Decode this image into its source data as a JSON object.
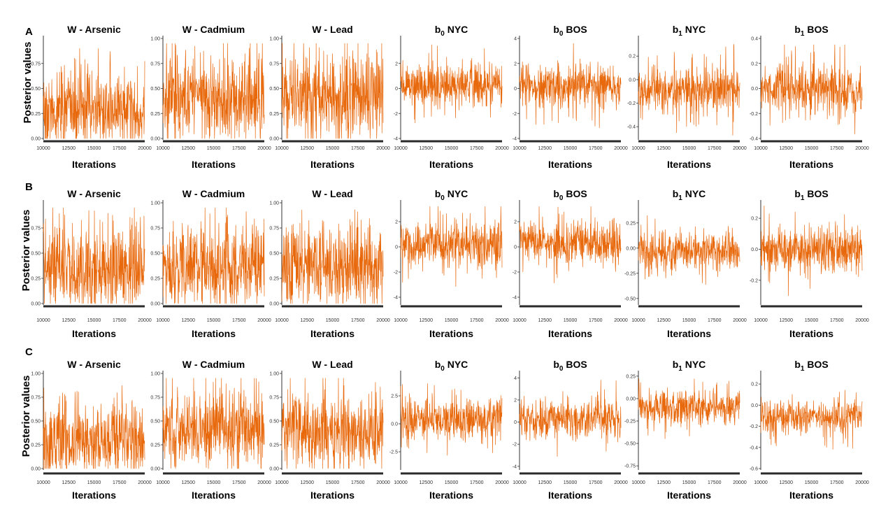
{
  "colors": {
    "trace": "#e8680c",
    "axis": "#333333",
    "xbar": "#2a2a2a"
  },
  "y_axis_label": "Posterior values",
  "x_axis_label": "Iterations",
  "chart_data": [
    {
      "panel": "A",
      "type": "line",
      "title": "W - Arsenic",
      "xlim": [
        10000,
        20000
      ],
      "xticks": [
        "10000",
        "12500",
        "15000",
        "17500",
        "20000"
      ],
      "ylim": [
        0,
        1
      ],
      "yticks": [
        "0.00",
        "0.25",
        "0.50",
        "0.75"
      ],
      "trace": {
        "center": 0.25,
        "spread": 0.18,
        "skew": 0.12,
        "min": 0.0,
        "max": 0.9
      }
    },
    {
      "panel": "A",
      "type": "line",
      "title": "W - Cadmium",
      "xlim": [
        10000,
        20000
      ],
      "xticks": [
        "10000",
        "12500",
        "15000",
        "17500",
        "20000"
      ],
      "ylim": [
        0,
        1
      ],
      "yticks": [
        "0.00",
        "0.25",
        "0.50",
        "0.75",
        "1.00"
      ],
      "trace": {
        "center": 0.35,
        "spread": 0.2,
        "skew": 0.1,
        "min": 0.0,
        "max": 0.95
      }
    },
    {
      "panel": "A",
      "type": "line",
      "title": "W - Lead",
      "xlim": [
        10000,
        20000
      ],
      "xticks": [
        "10000",
        "12500",
        "15000",
        "17500",
        "20000"
      ],
      "ylim": [
        0,
        1
      ],
      "yticks": [
        "0.00",
        "0.25",
        "0.50",
        "0.75",
        "1.00"
      ],
      "trace": {
        "center": 0.4,
        "spread": 0.2,
        "skew": 0.1,
        "min": 0.0,
        "max": 0.95
      }
    },
    {
      "panel": "A",
      "type": "line",
      "title": "NYC",
      "title_prefix": "b",
      "title_sub": "0",
      "xlim": [
        10000,
        20000
      ],
      "xticks": [
        "10000",
        "12500",
        "15000",
        "17500",
        "20000"
      ],
      "ylim": [
        -4,
        4
      ],
      "yticks": [
        "-4",
        "-2",
        "0",
        "2"
      ],
      "trace": {
        "center": 0.3,
        "spread": 0.9,
        "skew": 0.0,
        "min": -3.6,
        "max": 3.5
      }
    },
    {
      "panel": "A",
      "type": "line",
      "title": "BOS",
      "title_prefix": "b",
      "title_sub": "0",
      "xlim": [
        10000,
        20000
      ],
      "xticks": [
        "10000",
        "12500",
        "15000",
        "17500",
        "20000"
      ],
      "ylim": [
        -4,
        4
      ],
      "yticks": [
        "-4",
        "-2",
        "0",
        "2",
        "4"
      ],
      "trace": {
        "center": 0.2,
        "spread": 0.9,
        "skew": 0.0,
        "min": -3.8,
        "max": 3.6
      }
    },
    {
      "panel": "A",
      "type": "line",
      "title": "NYC",
      "title_prefix": "b",
      "title_sub": "1",
      "xlim": [
        10000,
        20000
      ],
      "xticks": [
        "10000",
        "12500",
        "15000",
        "17500",
        "20000"
      ],
      "ylim": [
        -0.5,
        0.35
      ],
      "yticks": [
        "-0.4",
        "-0.2",
        "0.0",
        "0.2"
      ],
      "trace": {
        "center": -0.08,
        "spread": 0.1,
        "skew": 0.0,
        "min": -0.48,
        "max": 0.3
      }
    },
    {
      "panel": "A",
      "type": "line",
      "title": "BOS",
      "title_prefix": "b",
      "title_sub": "1",
      "xlim": [
        10000,
        20000
      ],
      "xticks": [
        "10000",
        "12500",
        "15000",
        "17500",
        "20000"
      ],
      "ylim": [
        -0.4,
        0.4
      ],
      "yticks": [
        "-0.4",
        "-0.2",
        "0.0",
        "0.2",
        "0.4"
      ],
      "trace": {
        "center": 0.0,
        "spread": 0.1,
        "skew": 0.0,
        "min": -0.38,
        "max": 0.35
      }
    },
    {
      "panel": "B",
      "type": "line",
      "title": "W - Arsenic",
      "xlim": [
        10000,
        20000
      ],
      "xticks": [
        "10000",
        "12500",
        "15000",
        "17500",
        "20000"
      ],
      "ylim": [
        0,
        1
      ],
      "yticks": [
        "0.00",
        "0.25",
        "0.50",
        "0.75"
      ],
      "trace": {
        "center": 0.3,
        "spread": 0.2,
        "skew": 0.12,
        "min": 0.0,
        "max": 0.95
      }
    },
    {
      "panel": "B",
      "type": "line",
      "title": "W - Cadmium",
      "xlim": [
        10000,
        20000
      ],
      "xticks": [
        "10000",
        "12500",
        "15000",
        "17500",
        "20000"
      ],
      "ylim": [
        0,
        1
      ],
      "yticks": [
        "0.00",
        "0.25",
        "0.50",
        "0.75",
        "1.00"
      ],
      "trace": {
        "center": 0.35,
        "spread": 0.2,
        "skew": 0.1,
        "min": 0.0,
        "max": 0.95
      }
    },
    {
      "panel": "B",
      "type": "line",
      "title": "W - Lead",
      "xlim": [
        10000,
        20000
      ],
      "xticks": [
        "10000",
        "12500",
        "15000",
        "17500",
        "20000"
      ],
      "ylim": [
        0,
        1
      ],
      "yticks": [
        "0.00",
        "0.25",
        "0.50",
        "0.75",
        "1.00"
      ],
      "trace": {
        "center": 0.35,
        "spread": 0.2,
        "skew": 0.1,
        "min": 0.0,
        "max": 0.95
      }
    },
    {
      "panel": "B",
      "type": "line",
      "title": "NYC",
      "title_prefix": "b",
      "title_sub": "0",
      "xlim": [
        10000,
        20000
      ],
      "xticks": [
        "10000",
        "12500",
        "15000",
        "17500",
        "20000"
      ],
      "ylim": [
        -4.5,
        3.5
      ],
      "yticks": [
        "-4",
        "-2",
        "0",
        "2"
      ],
      "trace": {
        "center": 0.2,
        "spread": 0.9,
        "skew": 0.0,
        "min": -4.2,
        "max": 3.2
      }
    },
    {
      "panel": "B",
      "type": "line",
      "title": "BOS",
      "title_prefix": "b",
      "title_sub": "0",
      "xlim": [
        10000,
        20000
      ],
      "xticks": [
        "10000",
        "12500",
        "15000",
        "17500",
        "20000"
      ],
      "ylim": [
        -4.5,
        3.5
      ],
      "yticks": [
        "-4",
        "-2",
        "0",
        "2"
      ],
      "trace": {
        "center": 0.3,
        "spread": 0.9,
        "skew": 0.0,
        "min": -4.2,
        "max": 3.2
      }
    },
    {
      "panel": "B",
      "type": "line",
      "title": "NYC",
      "title_prefix": "b",
      "title_sub": "1",
      "xlim": [
        10000,
        20000
      ],
      "xticks": [
        "10000",
        "12500",
        "15000",
        "17500",
        "20000"
      ],
      "ylim": [
        -0.55,
        0.45
      ],
      "yticks": [
        "-0.50",
        "-0.25",
        "0.00",
        "0.25"
      ],
      "trace": {
        "center": -0.03,
        "spread": 0.1,
        "skew": 0.0,
        "min": -0.5,
        "max": 0.38
      }
    },
    {
      "panel": "B",
      "type": "line",
      "title": "BOS",
      "title_prefix": "b",
      "title_sub": "1",
      "xlim": [
        10000,
        20000
      ],
      "xticks": [
        "10000",
        "12500",
        "15000",
        "17500",
        "20000"
      ],
      "ylim": [
        -0.35,
        0.3
      ],
      "yticks": [
        "-0.2",
        "0.0",
        "0.2"
      ],
      "trace": {
        "center": 0.0,
        "spread": 0.08,
        "skew": 0.0,
        "min": -0.3,
        "max": 0.28
      }
    },
    {
      "panel": "C",
      "type": "line",
      "title": "W - Arsenic",
      "xlim": [
        10000,
        20000
      ],
      "xticks": [
        "10000",
        "12500",
        "15000",
        "17500",
        "20000"
      ],
      "ylim": [
        0,
        1
      ],
      "yticks": [
        "0.00",
        "0.25",
        "0.50",
        "0.75",
        "1.00"
      ],
      "trace": {
        "center": 0.25,
        "spread": 0.18,
        "skew": 0.12,
        "min": 0.0,
        "max": 0.92
      }
    },
    {
      "panel": "C",
      "type": "line",
      "title": "W - Cadmium",
      "xlim": [
        10000,
        20000
      ],
      "xticks": [
        "10000",
        "12500",
        "15000",
        "17500",
        "20000"
      ],
      "ylim": [
        0,
        1
      ],
      "yticks": [
        "0.00",
        "0.25",
        "0.50",
        "0.75",
        "1.00"
      ],
      "trace": {
        "center": 0.4,
        "spread": 0.2,
        "skew": 0.1,
        "min": 0.0,
        "max": 0.95
      }
    },
    {
      "panel": "C",
      "type": "line",
      "title": "W - Lead",
      "xlim": [
        10000,
        20000
      ],
      "xticks": [
        "10000",
        "12500",
        "15000",
        "17500",
        "20000"
      ],
      "ylim": [
        0,
        1
      ],
      "yticks": [
        "0.00",
        "0.25",
        "0.50",
        "0.75",
        "1.00"
      ],
      "trace": {
        "center": 0.35,
        "spread": 0.2,
        "skew": 0.1,
        "min": 0.0,
        "max": 0.95
      }
    },
    {
      "panel": "C",
      "type": "line",
      "title": "NYC",
      "title_prefix": "b",
      "title_sub": "0",
      "xlim": [
        10000,
        20000
      ],
      "xticks": [
        "10000",
        "12500",
        "15000",
        "17500",
        "20000"
      ],
      "ylim": [
        -4,
        4.5
      ],
      "yticks": [
        "-2.5",
        "0.0",
        "2.5"
      ],
      "trace": {
        "center": 0.4,
        "spread": 0.9,
        "skew": 0.0,
        "min": -3.8,
        "max": 3.8
      }
    },
    {
      "panel": "C",
      "type": "line",
      "title": "BOS",
      "title_prefix": "b",
      "title_sub": "0",
      "xlim": [
        10000,
        20000
      ],
      "xticks": [
        "10000",
        "12500",
        "15000",
        "17500",
        "20000"
      ],
      "ylim": [
        -4.2,
        4.4
      ],
      "yticks": [
        "-4",
        "-2",
        "0",
        "2",
        "4"
      ],
      "trace": {
        "center": 0.3,
        "spread": 0.9,
        "skew": 0.0,
        "min": -3.8,
        "max": 3.8
      }
    },
    {
      "panel": "C",
      "type": "line",
      "title": "NYC",
      "title_prefix": "b",
      "title_sub": "1",
      "xlim": [
        10000,
        20000
      ],
      "xticks": [
        "10000",
        "12500",
        "15000",
        "17500",
        "20000"
      ],
      "ylim": [
        -0.78,
        0.28
      ],
      "yticks": [
        "-0.75",
        "-0.50",
        "-0.25",
        "0.00",
        "0.25"
      ],
      "trace": {
        "center": -0.1,
        "spread": 0.1,
        "skew": 0.0,
        "min": -0.72,
        "max": 0.22
      }
    },
    {
      "panel": "C",
      "type": "line",
      "title": "BOS",
      "title_prefix": "b",
      "title_sub": "1",
      "xlim": [
        10000,
        20000
      ],
      "xticks": [
        "10000",
        "12500",
        "15000",
        "17500",
        "20000"
      ],
      "ylim": [
        -0.6,
        0.3
      ],
      "yticks": [
        "-0.6",
        "-0.4",
        "-0.2",
        "0.0",
        "0.2"
      ],
      "trace": {
        "center": -0.1,
        "spread": 0.08,
        "skew": 0.0,
        "min": -0.56,
        "max": 0.25
      }
    }
  ]
}
